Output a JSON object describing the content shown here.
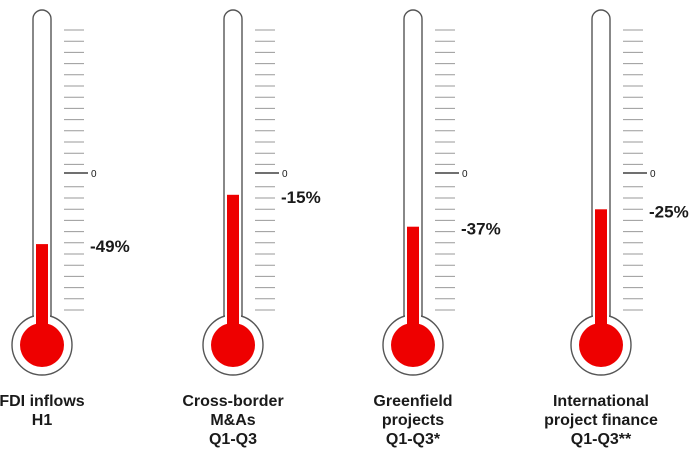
{
  "chart_data": {
    "type": "thermometer",
    "zero_tick_label": "0",
    "value_min": -100,
    "value_max": 100,
    "fill_color": "#ee0000",
    "items": [
      {
        "label_lines": [
          "FDI inflows",
          "H1"
        ],
        "value": -49,
        "value_label": "-49%"
      },
      {
        "label_lines": [
          "Cross-border",
          "M&As",
          "Q1-Q3"
        ],
        "value": -15,
        "value_label": "-15%"
      },
      {
        "label_lines": [
          "Greenfield",
          "projects",
          "Q1-Q3*"
        ],
        "value": -37,
        "value_label": "-37%"
      },
      {
        "label_lines": [
          "International",
          "project finance",
          "Q1-Q3**"
        ],
        "value": -25,
        "value_label": "-25%"
      }
    ]
  }
}
